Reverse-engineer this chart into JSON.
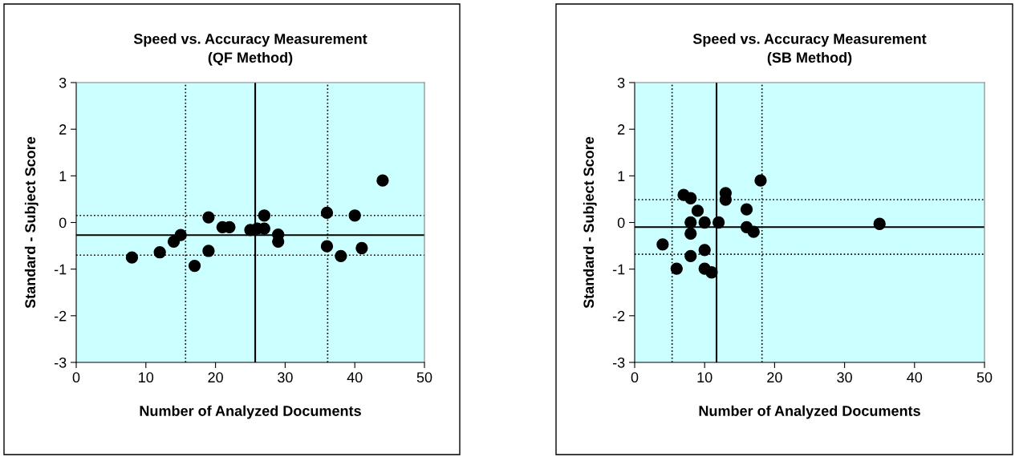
{
  "chart_data": [
    {
      "type": "scatter",
      "title": "Speed vs. Accuracy Measurement\n(QF Method)",
      "xlabel": "Number of Analyzed Documents",
      "ylabel": "Standard - Subject Score",
      "x": [
        8,
        12,
        14,
        15,
        19,
        19,
        17,
        21,
        22,
        25,
        26,
        27,
        27,
        29,
        29,
        36,
        36,
        38,
        40,
        41,
        44
      ],
      "series": [
        {
          "color": "#000000",
          "values": [
            -0.75,
            -0.64,
            -0.41,
            -0.27,
            0.11,
            -0.61,
            -0.93,
            -0.1,
            -0.1,
            -0.16,
            -0.13,
            -0.13,
            0.15,
            -0.26,
            -0.41,
            0.21,
            -0.51,
            -0.72,
            0.15,
            -0.55,
            0.9
          ]
        }
      ],
      "xlim": [
        0,
        50
      ],
      "xticks": [
        0,
        10,
        20,
        30,
        40,
        50
      ],
      "ylim": [
        -3,
        3
      ],
      "yticks": [
        -3,
        -2,
        -1,
        0,
        1,
        2,
        3
      ],
      "marker": "circle",
      "grid": false,
      "ref_lines": [
        {
          "axis": "x",
          "value": 25.7,
          "color": "#000000",
          "line_style": "solid"
        },
        {
          "axis": "x",
          "value": 15.7,
          "color": "#000000",
          "line_style": "dotted"
        },
        {
          "axis": "x",
          "value": 36.1,
          "color": "#000000",
          "line_style": "dotted"
        },
        {
          "axis": "y",
          "value": -0.27,
          "color": "#000000",
          "line_style": "solid"
        },
        {
          "axis": "y",
          "value": 0.15,
          "color": "#000000",
          "line_style": "dotted"
        },
        {
          "axis": "y",
          "value": -0.7,
          "color": "#000000",
          "line_style": "dotted"
        }
      ]
    },
    {
      "type": "scatter",
      "title": "Speed vs. Accuracy Measurement\n(SB Method)",
      "xlabel": "Number of Analyzed Documents",
      "ylabel": "Standard - Subject Score",
      "x": [
        4,
        6,
        7,
        8,
        9,
        8,
        10,
        12,
        8,
        10,
        8,
        10,
        11,
        13,
        13,
        16,
        16,
        17,
        18,
        35
      ],
      "series": [
        {
          "color": "#000000",
          "values": [
            -0.47,
            -0.99,
            0.59,
            0.52,
            0.25,
            0,
            0,
            0,
            -0.24,
            -0.59,
            -0.72,
            -0.99,
            -1.07,
            0.63,
            0.49,
            0.28,
            -0.1,
            -0.2,
            0.9,
            -0.03
          ]
        }
      ],
      "xlim": [
        0,
        50
      ],
      "xticks": [
        0,
        10,
        20,
        30,
        40,
        50
      ],
      "ylim": [
        -3,
        3
      ],
      "yticks": [
        -3,
        -2,
        -1,
        0,
        1,
        2,
        3
      ],
      "marker": "circle",
      "grid": false,
      "ref_lines": [
        {
          "axis": "x",
          "value": 11.7,
          "color": "#000000",
          "line_style": "solid"
        },
        {
          "axis": "x",
          "value": 5.35,
          "color": "#000000",
          "line_style": "dotted"
        },
        {
          "axis": "x",
          "value": 18.2,
          "color": "#000000",
          "line_style": "dotted"
        },
        {
          "axis": "y",
          "value": -0.1,
          "color": "#000000",
          "line_style": "solid"
        },
        {
          "axis": "y",
          "value": 0.49,
          "color": "#000000",
          "line_style": "dotted"
        },
        {
          "axis": "y",
          "value": -0.68,
          "color": "#000000",
          "line_style": "dotted"
        }
      ]
    }
  ]
}
